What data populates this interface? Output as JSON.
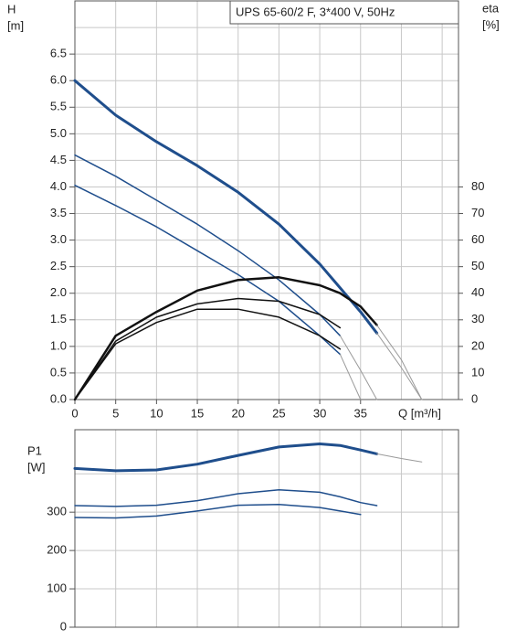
{
  "chart_data": [
    {
      "type": "line",
      "title": "UPS 65-60/2 F, 3*400 V, 50Hz",
      "ylabel": [
        "H",
        "[m]"
      ],
      "y2label": [
        "eta",
        "[%]"
      ],
      "xlabel": "Q [m³/h]",
      "xlim": [
        0,
        47
      ],
      "ylim": [
        0,
        7.5
      ],
      "y2lim": [
        0,
        150
      ],
      "xticks": [
        0,
        5,
        10,
        15,
        20,
        25,
        30,
        35
      ],
      "xgrid": [
        0,
        5,
        10,
        15,
        20,
        25,
        30,
        35,
        40,
        45
      ],
      "ygrid": [
        0,
        0.5,
        1,
        1.5,
        2,
        2.5,
        3,
        3.5,
        4,
        4.5,
        5,
        5.5,
        6,
        6.5,
        7
      ],
      "yticks": [
        {
          "value": 0,
          "label": "0.0"
        },
        0.5,
        {
          "value": 1,
          "label": "1.0"
        },
        1.5,
        {
          "value": 2,
          "label": "2.0"
        },
        2.5,
        {
          "value": 3,
          "label": "3.0"
        },
        3.5,
        {
          "value": 4,
          "label": "4.0"
        },
        4.5,
        {
          "value": 5,
          "label": "5.0"
        },
        5.5,
        {
          "value": 6,
          "label": "6.0"
        },
        6.5
      ],
      "y2ticks": [
        0,
        10,
        20,
        30,
        40,
        50,
        60,
        70,
        80
      ],
      "x": [
        0,
        5,
        10,
        15,
        20,
        25,
        30,
        32.5,
        35,
        37,
        40,
        42.5
      ],
      "series": [
        {
          "color": "#1f4e8c",
          "width": 3,
          "values": [
            6.0,
            5.35,
            4.85,
            4.4,
            3.9,
            3.3,
            2.55,
            2.1,
            1.65,
            1.25,
            null,
            null
          ]
        },
        {
          "color": "#9a9a9a",
          "width": 1,
          "values": [
            null,
            null,
            null,
            null,
            null,
            null,
            null,
            null,
            null,
            1.25,
            0.6,
            0
          ]
        },
        {
          "color": "#1f4e8c",
          "width": 1.5,
          "values": [
            4.6,
            4.2,
            3.75,
            3.3,
            2.8,
            2.25,
            1.6,
            1.2,
            null,
            null,
            null,
            null
          ]
        },
        {
          "color": "#9a9a9a",
          "width": 1,
          "values": [
            null,
            null,
            null,
            null,
            null,
            null,
            null,
            1.2,
            0.55,
            0,
            null,
            null
          ]
        },
        {
          "color": "#1f4e8c",
          "width": 1.5,
          "values": [
            4.03,
            3.65,
            3.25,
            2.8,
            2.35,
            1.85,
            1.2,
            0.85,
            null,
            null,
            null,
            null
          ]
        },
        {
          "color": "#9a9a9a",
          "width": 1,
          "values": [
            null,
            null,
            null,
            null,
            null,
            null,
            null,
            0.85,
            0,
            null,
            null,
            null
          ]
        },
        {
          "color": "#111111",
          "width": 2.5,
          "axis": "y2",
          "values": [
            0,
            24,
            33,
            41,
            45,
            46,
            43,
            40,
            35,
            28,
            null,
            null
          ]
        },
        {
          "color": "#9a9a9a",
          "width": 1,
          "axis": "y2",
          "values": [
            null,
            null,
            null,
            null,
            null,
            null,
            null,
            null,
            null,
            28,
            15,
            0
          ]
        },
        {
          "color": "#111111",
          "width": 1.5,
          "axis": "y2",
          "values": [
            0,
            22,
            31,
            36,
            38,
            37,
            32,
            27,
            null,
            null,
            null,
            null
          ]
        },
        {
          "color": "#111111",
          "width": 1.5,
          "axis": "y2",
          "values": [
            0,
            21,
            29,
            34,
            34,
            31,
            24,
            19,
            null,
            null,
            null,
            null
          ]
        }
      ]
    },
    {
      "type": "line",
      "ylabel": [
        "P1",
        "[W]"
      ],
      "xlim": [
        0,
        47
      ],
      "ylim": [
        0,
        515
      ],
      "yticks": [
        0,
        100,
        200,
        300
      ],
      "xgrid": [
        0,
        5,
        10,
        15,
        20,
        25,
        30,
        35,
        40,
        45
      ],
      "ygrid": [
        0,
        100,
        200,
        300,
        400
      ],
      "x": [
        0,
        5,
        10,
        15,
        20,
        25,
        30,
        32.5,
        35,
        37,
        40,
        42.5
      ],
      "series": [
        {
          "color": "#1f4e8c",
          "width": 3,
          "values": [
            414,
            408,
            410,
            425,
            448,
            470,
            478,
            474,
            462,
            452,
            null,
            null
          ]
        },
        {
          "color": "#9a9a9a",
          "width": 1,
          "values": [
            null,
            null,
            null,
            null,
            null,
            null,
            null,
            null,
            null,
            452,
            440,
            431
          ]
        },
        {
          "color": "#1f4e8c",
          "width": 1.5,
          "values": [
            317,
            315,
            318,
            330,
            348,
            358,
            352,
            340,
            325,
            317,
            null,
            null
          ]
        },
        {
          "color": "#1f4e8c",
          "width": 1.5,
          "values": [
            286,
            285,
            290,
            303,
            318,
            320,
            312,
            303,
            294,
            null,
            null,
            null
          ]
        }
      ]
    }
  ]
}
